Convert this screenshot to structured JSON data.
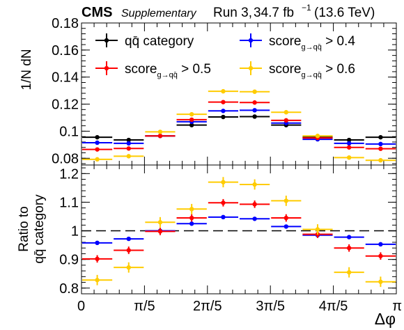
{
  "header": {
    "experiment": "CMS",
    "tag": "Supplementary",
    "run": "Run 3,",
    "lumi_value": "34.7 fb",
    "lumi_exp": "−1",
    "energy": "(13.6 TeV)"
  },
  "chart_data": {
    "type": "scatter",
    "x_label": "Δφ",
    "x_range": [
      0,
      3.14159
    ],
    "x_tick_labels": [
      "0",
      "π/5",
      "2π/5",
      "3π/5",
      "4π/5",
      "π"
    ],
    "x_bin_edges": [
      0,
      0.314,
      0.628,
      0.942,
      1.257,
      1.571,
      1.885,
      2.199,
      2.513,
      2.827,
      3.142
    ],
    "top_panel": {
      "y_label": "1/N dN",
      "y_range": [
        0.075,
        0.18
      ],
      "y_tick_labels": [
        "0.08",
        "0.1",
        "0.12",
        "0.14",
        "0.16",
        "0.18"
      ],
      "y_ticks": [
        0.08,
        0.1,
        0.12,
        0.14,
        0.16,
        0.18
      ],
      "series": [
        {
          "name": "qq̄ category",
          "color": "#000000",
          "values": [
            0.0955,
            0.0935,
            0.0965,
            0.1045,
            0.1105,
            0.1108,
            0.1045,
            0.0955,
            0.0935,
            0.0955
          ],
          "errors": [
            0.0008,
            0.0008,
            0.0008,
            0.0008,
            0.0008,
            0.0008,
            0.0008,
            0.0008,
            0.0008,
            0.0008
          ]
        },
        {
          "name": "score > 0.4",
          "color": "#0000ff",
          "values": [
            0.0915,
            0.091,
            0.0965,
            0.107,
            0.115,
            0.1155,
            0.106,
            0.094,
            0.091,
            0.0905
          ],
          "errors": [
            0.0009,
            0.0009,
            0.0009,
            0.0009,
            0.0009,
            0.0009,
            0.0009,
            0.0009,
            0.0009,
            0.0009
          ]
        },
        {
          "name": "score > 0.5",
          "color": "#ff0000",
          "values": [
            0.0865,
            0.0872,
            0.0965,
            0.1085,
            0.1215,
            0.1212,
            0.108,
            0.095,
            0.088,
            0.087
          ],
          "errors": [
            0.0012,
            0.0012,
            0.0012,
            0.0012,
            0.0012,
            0.0012,
            0.0012,
            0.0012,
            0.0012,
            0.0012
          ]
        },
        {
          "name": "score > 0.6",
          "color": "#ffcc00",
          "values": [
            0.0792,
            0.0815,
            0.0995,
            0.1125,
            0.1295,
            0.1292,
            0.114,
            0.0965,
            0.0805,
            0.0785
          ],
          "errors": [
            0.0015,
            0.0015,
            0.0015,
            0.0015,
            0.0015,
            0.0015,
            0.0015,
            0.0015,
            0.0015,
            0.0015
          ]
        }
      ],
      "legend": [
        {
          "label": "qq̄ category",
          "sub": "",
          "gt": "",
          "color": "#000000"
        },
        {
          "label": "score",
          "sub": "g→qq̄",
          "gt": "> 0.4",
          "color": "#0000ff"
        },
        {
          "label": "score",
          "sub": "g→qq̄",
          "gt": "> 0.5",
          "color": "#ff0000"
        },
        {
          "label": "score",
          "sub": "g→qq̄",
          "gt": "> 0.6",
          "color": "#ffcc00"
        }
      ]
    },
    "bottom_panel": {
      "y_label_line1": "Ratio to",
      "y_label_line2": "qq̄ category",
      "y_range": [
        0.78,
        1.23
      ],
      "y_tick_labels": [
        "0.8",
        "0.9",
        "1",
        "1.1",
        "1.2"
      ],
      "y_ticks": [
        0.8,
        0.9,
        1.0,
        1.1,
        1.2
      ],
      "reference_line": 1.0,
      "series": [
        {
          "name": "score > 0.4",
          "color": "#0000ff",
          "values": [
            0.958,
            0.972,
            1.0,
            1.025,
            1.048,
            1.042,
            1.015,
            0.985,
            0.978,
            0.953
          ],
          "errors": [
            0.004,
            0.004,
            0.004,
            0.004,
            0.004,
            0.004,
            0.004,
            0.004,
            0.004,
            0.004
          ]
        },
        {
          "name": "score > 0.5",
          "color": "#ff0000",
          "values": [
            0.902,
            0.932,
            0.998,
            1.045,
            1.098,
            1.093,
            1.045,
            0.988,
            0.94,
            0.912
          ],
          "errors": [
            0.013,
            0.013,
            0.013,
            0.013,
            0.013,
            0.013,
            0.013,
            0.013,
            0.013,
            0.013
          ]
        },
        {
          "name": "score > 0.6",
          "color": "#ffcc00",
          "values": [
            0.828,
            0.872,
            1.03,
            1.076,
            1.17,
            1.162,
            1.105,
            1.005,
            0.855,
            0.822
          ],
          "errors": [
            0.018,
            0.018,
            0.018,
            0.018,
            0.018,
            0.018,
            0.018,
            0.018,
            0.018,
            0.018
          ]
        }
      ]
    }
  }
}
